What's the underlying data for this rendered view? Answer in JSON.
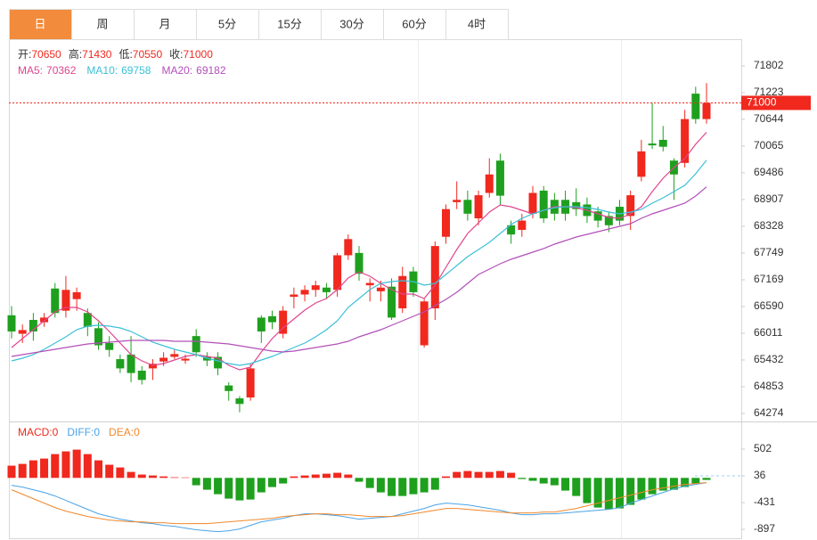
{
  "chart_data": {
    "type": "candlestick",
    "tabs": [
      "日",
      "周",
      "月",
      "5分",
      "15分",
      "30分",
      "60分",
      "4时"
    ],
    "active_tab": 0,
    "up_color": "#f0281e",
    "down_color": "#1ea01e",
    "ohlc_labels": [
      "开:",
      "高:",
      "低:",
      "收:"
    ],
    "candles": {
      "open": [
        66400,
        66000,
        66300,
        66250,
        66980,
        66500,
        66750,
        66450,
        66120,
        65800,
        65450,
        65550,
        65200,
        65250,
        65400,
        65500,
        65420,
        65950,
        65500,
        65500,
        64880,
        64600,
        64620,
        66350,
        66380,
        66000,
        66800,
        66850,
        66950,
        67000,
        66950,
        67700,
        67750,
        67050,
        66920,
        67020,
        66550,
        67350,
        65750,
        66550,
        68100,
        68850,
        68900,
        68500,
        69050,
        69750,
        68350,
        68250,
        68600,
        69100,
        68900,
        68900,
        68850,
        68800,
        68650,
        68550,
        68750,
        68550,
        69400,
        70120,
        70200,
        69750,
        69700,
        71200,
        70650
      ],
      "high": [
        66600,
        66200,
        66450,
        66450,
        67100,
        67250,
        67000,
        66550,
        66250,
        65950,
        65550,
        65950,
        65300,
        65450,
        65600,
        65650,
        65550,
        66100,
        65600,
        65600,
        64950,
        64650,
        65350,
        66400,
        66500,
        66600,
        67000,
        67050,
        67150,
        67100,
        67750,
        68150,
        67900,
        67200,
        67150,
        67200,
        67450,
        67450,
        66750,
        68000,
        68800,
        69300,
        69100,
        69100,
        69800,
        69900,
        68450,
        68600,
        69200,
        69200,
        69050,
        69100,
        69150,
        68950,
        68750,
        68650,
        68900,
        69100,
        70200,
        71000,
        70500,
        69800,
        70850,
        71350,
        71430
      ],
      "low": [
        65900,
        65800,
        65850,
        66150,
        66350,
        66350,
        66500,
        65950,
        65650,
        65500,
        65150,
        64950,
        64900,
        65000,
        65300,
        65450,
        65350,
        65500,
        65300,
        65100,
        64550,
        64300,
        64550,
        65800,
        66100,
        65900,
        66550,
        66700,
        66800,
        66750,
        66800,
        67600,
        67150,
        66700,
        66700,
        66300,
        66450,
        66800,
        65700,
        66300,
        67950,
        68700,
        68450,
        68350,
        68950,
        68800,
        67950,
        68100,
        68500,
        68400,
        68450,
        68450,
        68550,
        68400,
        68300,
        68200,
        68350,
        68250,
        69300,
        70000,
        69950,
        68900,
        69600,
        70550,
        70550
      ],
      "close": [
        66050,
        66080,
        66050,
        66350,
        66450,
        66950,
        66900,
        66150,
        65750,
        65650,
        65250,
        65150,
        65000,
        65350,
        65480,
        65560,
        65460,
        65600,
        65420,
        65250,
        64760,
        64480,
        65250,
        66050,
        66250,
        66500,
        66850,
        66950,
        67050,
        66900,
        67700,
        68050,
        67300,
        67100,
        67000,
        66350,
        67250,
        66900,
        66700,
        67900,
        68700,
        68900,
        68600,
        69000,
        69450,
        68990,
        68150,
        68450,
        69050,
        68500,
        68600,
        68600,
        68700,
        68550,
        68450,
        68350,
        68450,
        69000,
        69950,
        70080,
        70050,
        69450,
        70650,
        70650,
        71000
      ]
    },
    "series": [
      {
        "name": "MA5:",
        "color": "#e0458e",
        "values": [
          65702,
          65895,
          66088,
          66281,
          66474,
          66571,
          66571,
          66474,
          66281,
          66050,
          65799,
          65548,
          65413,
          65316,
          65355,
          65432,
          65509,
          65548,
          65509,
          65471,
          65316,
          65220,
          65278,
          65606,
          65895,
          66127,
          66320,
          66513,
          66667,
          66764,
          66957,
          67208,
          67343,
          67246,
          67092,
          66957,
          66860,
          66860,
          66764,
          67053,
          67439,
          67825,
          68173,
          68404,
          68636,
          68790,
          68752,
          68674,
          68597,
          68674,
          68752,
          68752,
          68732,
          68674,
          68597,
          68520,
          68501,
          68597,
          68752,
          69080,
          69369,
          69601,
          69794,
          70103,
          70362
        ]
      },
      {
        "name": "MA10:",
        "color": "#3cc0d8",
        "values": [
          65413,
          65471,
          65548,
          65664,
          65799,
          65934,
          66088,
          66165,
          66185,
          66165,
          66127,
          66050,
          65934,
          65818,
          65741,
          65664,
          65606,
          65548,
          65471,
          65413,
          65355,
          65316,
          65355,
          65432,
          65509,
          65606,
          65702,
          65799,
          65934,
          66088,
          66281,
          66571,
          66764,
          66957,
          67092,
          67130,
          67150,
          67130,
          67053,
          67092,
          67285,
          67478,
          67671,
          67825,
          67980,
          68173,
          68366,
          68501,
          68597,
          68674,
          68732,
          68752,
          68752,
          68732,
          68694,
          68636,
          68597,
          68636,
          68694,
          68829,
          68945,
          69080,
          69215,
          69466,
          69758
        ]
      },
      {
        "name": "MA20:",
        "color": "#b24fb8",
        "values": [
          65509,
          65548,
          65586,
          65625,
          65664,
          65702,
          65741,
          65779,
          65799,
          65818,
          65837,
          65857,
          65857,
          65857,
          65857,
          65837,
          65837,
          65837,
          65818,
          65799,
          65779,
          65741,
          65702,
          65664,
          65625,
          65606,
          65625,
          65664,
          65702,
          65741,
          65779,
          65837,
          65934,
          66011,
          66088,
          66185,
          66281,
          66378,
          66474,
          66609,
          66744,
          66899,
          67092,
          67285,
          67401,
          67516,
          67613,
          67690,
          67767,
          67845,
          67941,
          68018,
          68095,
          68153,
          68211,
          68269,
          68327,
          68385,
          68501,
          68597,
          68674,
          68752,
          68829,
          68983,
          69182
        ]
      }
    ],
    "ylim": [
      64100,
      72360
    ],
    "yticks": [
      71802,
      71223,
      70644,
      70065,
      69486,
      68907,
      68328,
      67749,
      67169,
      66590,
      66011,
      65432,
      64853,
      64274
    ],
    "grid": false,
    "macd": {
      "ylim": [
        -1053,
        922
      ],
      "yticks": [
        502,
        36,
        -431,
        -897
      ],
      "histogram": {
        "name": "MACD:",
        "color": "#f0281e",
        "readout": 0,
        "values": [
          213,
          244,
          306,
          337,
          415,
          462,
          493,
          415,
          306,
          229,
          182,
          104,
          58,
          42,
          26,
          11,
          8,
          -129,
          -207,
          -285,
          -362,
          -393,
          -378,
          -253,
          -160,
          -98,
          26,
          42,
          58,
          73,
          89,
          58,
          -67,
          -176,
          -253,
          -316,
          -316,
          -285,
          -253,
          -207,
          26,
          104,
          120,
          104,
          104,
          120,
          89,
          -20,
          -51,
          -98,
          -129,
          -222,
          -316,
          -440,
          -518,
          -549,
          -533,
          -471,
          -378,
          -285,
          -222,
          -207,
          -160,
          -98,
          -36
        ]
      },
      "lines": [
        {
          "name": "DIFF:",
          "color": "#4aa3e6",
          "readout": 0,
          "values": [
            -129,
            -160,
            -207,
            -253,
            -316,
            -393,
            -471,
            -549,
            -627,
            -673,
            -720,
            -751,
            -782,
            -798,
            -829,
            -844,
            -875,
            -906,
            -922,
            -938,
            -922,
            -891,
            -829,
            -767,
            -736,
            -704,
            -658,
            -627,
            -627,
            -642,
            -658,
            -689,
            -720,
            -704,
            -689,
            -673,
            -627,
            -580,
            -533,
            -471,
            -440,
            -456,
            -471,
            -502,
            -533,
            -564,
            -611,
            -642,
            -642,
            -627,
            -627,
            -611,
            -596,
            -580,
            -564,
            -549,
            -518,
            -440,
            -378,
            -316,
            -253,
            -191,
            -145,
            -114,
            -82
          ]
        },
        {
          "name": "DEA:",
          "color": "#f0882c",
          "readout": 0,
          "values": [
            -207,
            -285,
            -362,
            -440,
            -518,
            -580,
            -627,
            -673,
            -704,
            -736,
            -751,
            -767,
            -767,
            -782,
            -782,
            -798,
            -798,
            -798,
            -798,
            -782,
            -767,
            -751,
            -736,
            -720,
            -704,
            -673,
            -658,
            -642,
            -627,
            -627,
            -642,
            -642,
            -658,
            -673,
            -673,
            -673,
            -658,
            -627,
            -596,
            -564,
            -533,
            -533,
            -549,
            -564,
            -580,
            -596,
            -611,
            -611,
            -611,
            -596,
            -596,
            -564,
            -533,
            -487,
            -440,
            -393,
            -347,
            -300,
            -253,
            -207,
            -176,
            -145,
            -114,
            -98,
            -82
          ]
        }
      ]
    }
  }
}
